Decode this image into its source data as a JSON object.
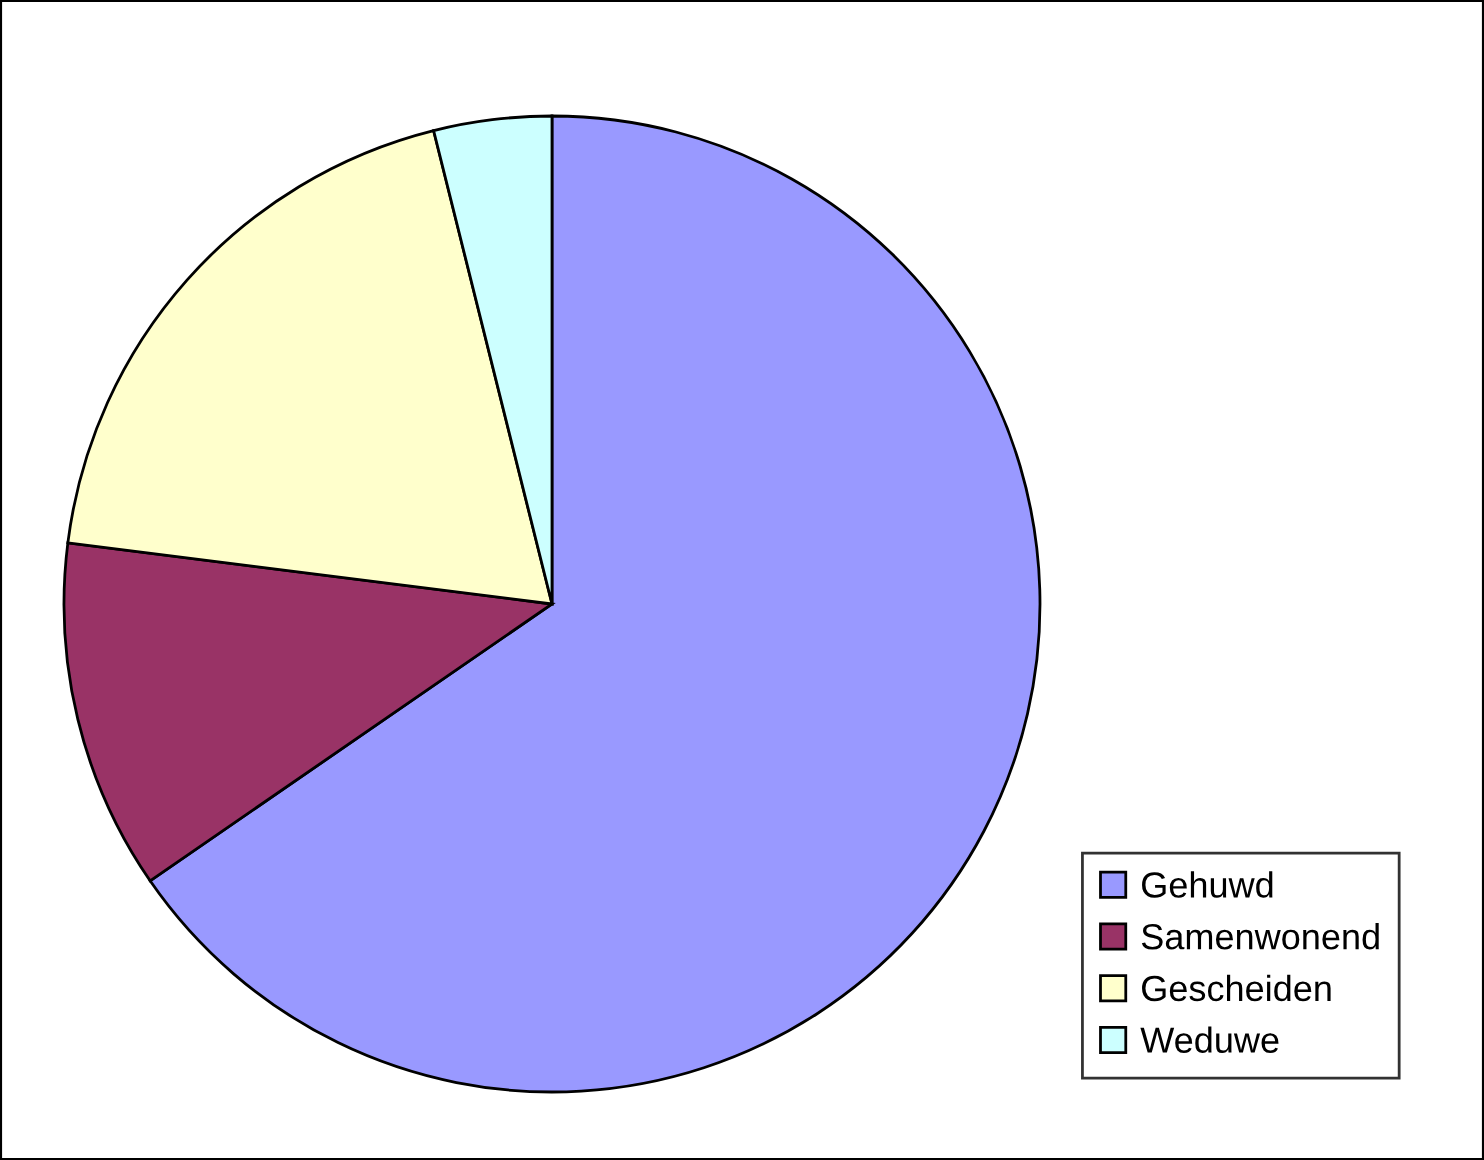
{
  "chart_data": {
    "type": "pie",
    "categories": [
      "Gehuwd",
      "Samenwonend",
      "Gescheiden",
      "Weduwe"
    ],
    "values": [
      65.4,
      11.6,
      19.1,
      3.9
    ],
    "colors": [
      "#9999ff",
      "#993366",
      "#ffffcc",
      "#ccffff"
    ],
    "legend": "bottom right"
  }
}
